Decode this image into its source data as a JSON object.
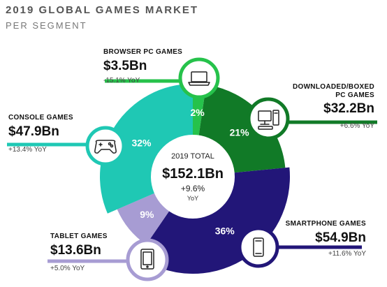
{
  "header": {
    "title": "2019 GLOBAL GAMES MARKET",
    "subtitle": "PER SEGMENT"
  },
  "center": {
    "total_label": "2019 TOTAL",
    "total_value": "$152.1Bn",
    "growth": "+9.6%",
    "growth_unit": "YoY"
  },
  "segments": [
    {
      "key": "browser",
      "name": "BROWSER PC GAMES",
      "name_lines": [
        "BROWSER PC GAMES"
      ],
      "value_label": "$3.5Bn",
      "yoy": "-15.1% YoY",
      "share_label": "2%",
      "icon": "laptop-icon",
      "color": "#26c24b"
    },
    {
      "key": "boxed",
      "name": "DOWNLOADED/BOXED PC GAMES",
      "name_lines": [
        "DOWNLOADED/BOXED",
        "PC GAMES"
      ],
      "value_label": "$32.2Bn",
      "yoy": "+6.6% YoY",
      "share_label": "21%",
      "icon": "desktop-pc-icon",
      "color": "#117a27"
    },
    {
      "key": "smartphone",
      "name": "SMARTPHONE GAMES",
      "name_lines": [
        "SMARTPHONE GAMES"
      ],
      "value_label": "$54.9Bn",
      "yoy": "+11.6% YoY",
      "share_label": "36%",
      "icon": "smartphone-icon",
      "color": "#221678"
    },
    {
      "key": "tablet",
      "name": "TABLET GAMES",
      "name_lines": [
        "TABLET GAMES"
      ],
      "value_label": "$13.6Bn",
      "yoy": "+5.0% YoY",
      "share_label": "9%",
      "icon": "tablet-icon",
      "color": "#a79cd3"
    },
    {
      "key": "console",
      "name": "CONSOLE GAMES",
      "name_lines": [
        "CONSOLE GAMES"
      ],
      "value_label": "$47.9Bn",
      "yoy": "+13.4% YoY",
      "share_label": "32%",
      "icon": "gamepad-icon",
      "color": "#1fc8b4"
    }
  ],
  "chart_data": {
    "type": "pie",
    "title": "2019 GLOBAL GAMES MARKET",
    "subtitle": "PER SEGMENT",
    "categories": [
      "BROWSER PC GAMES",
      "DOWNLOADED/BOXED PC GAMES",
      "SMARTPHONE GAMES",
      "TABLET GAMES",
      "CONSOLE GAMES"
    ],
    "values": [
      3.5,
      32.2,
      54.9,
      13.6,
      47.9
    ],
    "shares_percent": [
      2,
      21,
      36,
      9,
      32
    ],
    "yoy_growth_percent": [
      -15.1,
      6.6,
      11.6,
      5.0,
      13.4
    ],
    "total": 152.1,
    "total_growth_percent": 9.6,
    "unit": "$Bn",
    "colors": [
      "#26c24b",
      "#117a27",
      "#221678",
      "#a79cd3",
      "#1fc8b4"
    ]
  }
}
